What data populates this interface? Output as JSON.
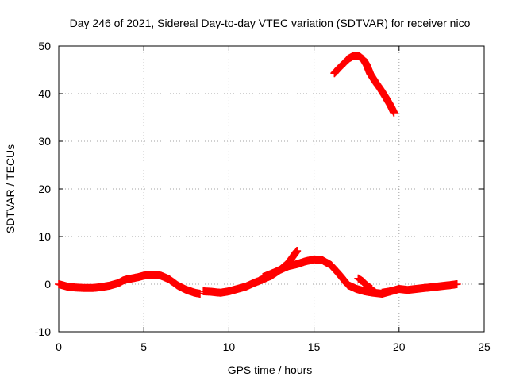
{
  "chart_data": {
    "type": "scatter",
    "title": "Day 246 of 2021, Sidereal Day-to-day VTEC variation (SDTVAR) for receiver nico",
    "xlabel": "GPS time / hours",
    "ylabel": "SDTVAR / TECUs",
    "xlim": [
      0,
      25
    ],
    "ylim": [
      -10,
      50
    ],
    "xticks": [
      0,
      5,
      10,
      15,
      20,
      25
    ],
    "yticks": [
      -10,
      0,
      10,
      20,
      30,
      40,
      50
    ],
    "grid": true,
    "marker": "+",
    "color": "#ff0000",
    "series": [
      {
        "name": "SDTVAR",
        "segments": [
          {
            "x": [
              0.0,
              0.5,
              1.0,
              1.5,
              2.0,
              2.5,
              3.0,
              3.5,
              3.8,
              4.0,
              4.3,
              4.7,
              5.0,
              5.5,
              6.0,
              6.5,
              7.0,
              7.5,
              8.0,
              8.3
            ],
            "y": [
              0.0,
              -0.5,
              -0.7,
              -0.8,
              -0.8,
              -0.6,
              -0.3,
              0.2,
              0.8,
              1.0,
              1.2,
              1.5,
              1.8,
              2.0,
              1.8,
              1.0,
              -0.3,
              -1.2,
              -1.8,
              -2.0
            ]
          },
          {
            "x": [
              8.5,
              9.0,
              9.5,
              10.0,
              10.5,
              11.0,
              11.5,
              12.0,
              12.5,
              13.0,
              13.5,
              14.0
            ],
            "y": [
              -1.5,
              -1.6,
              -1.8,
              -1.5,
              -1.0,
              -0.5,
              0.3,
              1.0,
              1.8,
              3.0,
              4.5,
              7.0
            ]
          },
          {
            "x": [
              12.0,
              12.5,
              13.0,
              13.5,
              14.0,
              14.5,
              15.0,
              15.5,
              16.0,
              16.5,
              17.0,
              17.5,
              18.0,
              18.5,
              19.0,
              19.5
            ],
            "y": [
              1.5,
              2.2,
              3.0,
              3.8,
              4.2,
              4.8,
              5.2,
              5.0,
              4.0,
              2.0,
              -0.2,
              -1.0,
              -1.5,
              -1.8,
              -2.0,
              -1.5
            ]
          },
          {
            "x": [
              17.6,
              17.9,
              18.1,
              18.4
            ],
            "y": [
              1.2,
              0.5,
              -0.3,
              -1.0
            ]
          },
          {
            "x": [
              19.0,
              19.5,
              20.0,
              20.5,
              21.0,
              21.5,
              22.0,
              22.5,
              23.0,
              23.4
            ],
            "y": [
              -1.8,
              -1.5,
              -1.0,
              -1.2,
              -1.0,
              -0.8,
              -0.6,
              -0.4,
              -0.2,
              0.0
            ]
          },
          {
            "x": [
              16.2,
              16.5,
              16.8,
              17.0,
              17.3,
              17.6,
              17.9,
              18.1,
              18.3,
              18.6,
              18.9,
              19.2,
              19.5,
              19.7
            ],
            "y": [
              44.3,
              45.5,
              46.5,
              47.3,
              47.9,
              48.0,
              47.2,
              46.0,
              44.2,
              42.5,
              41.0,
              39.3,
              37.5,
              36.0
            ]
          }
        ]
      }
    ]
  }
}
